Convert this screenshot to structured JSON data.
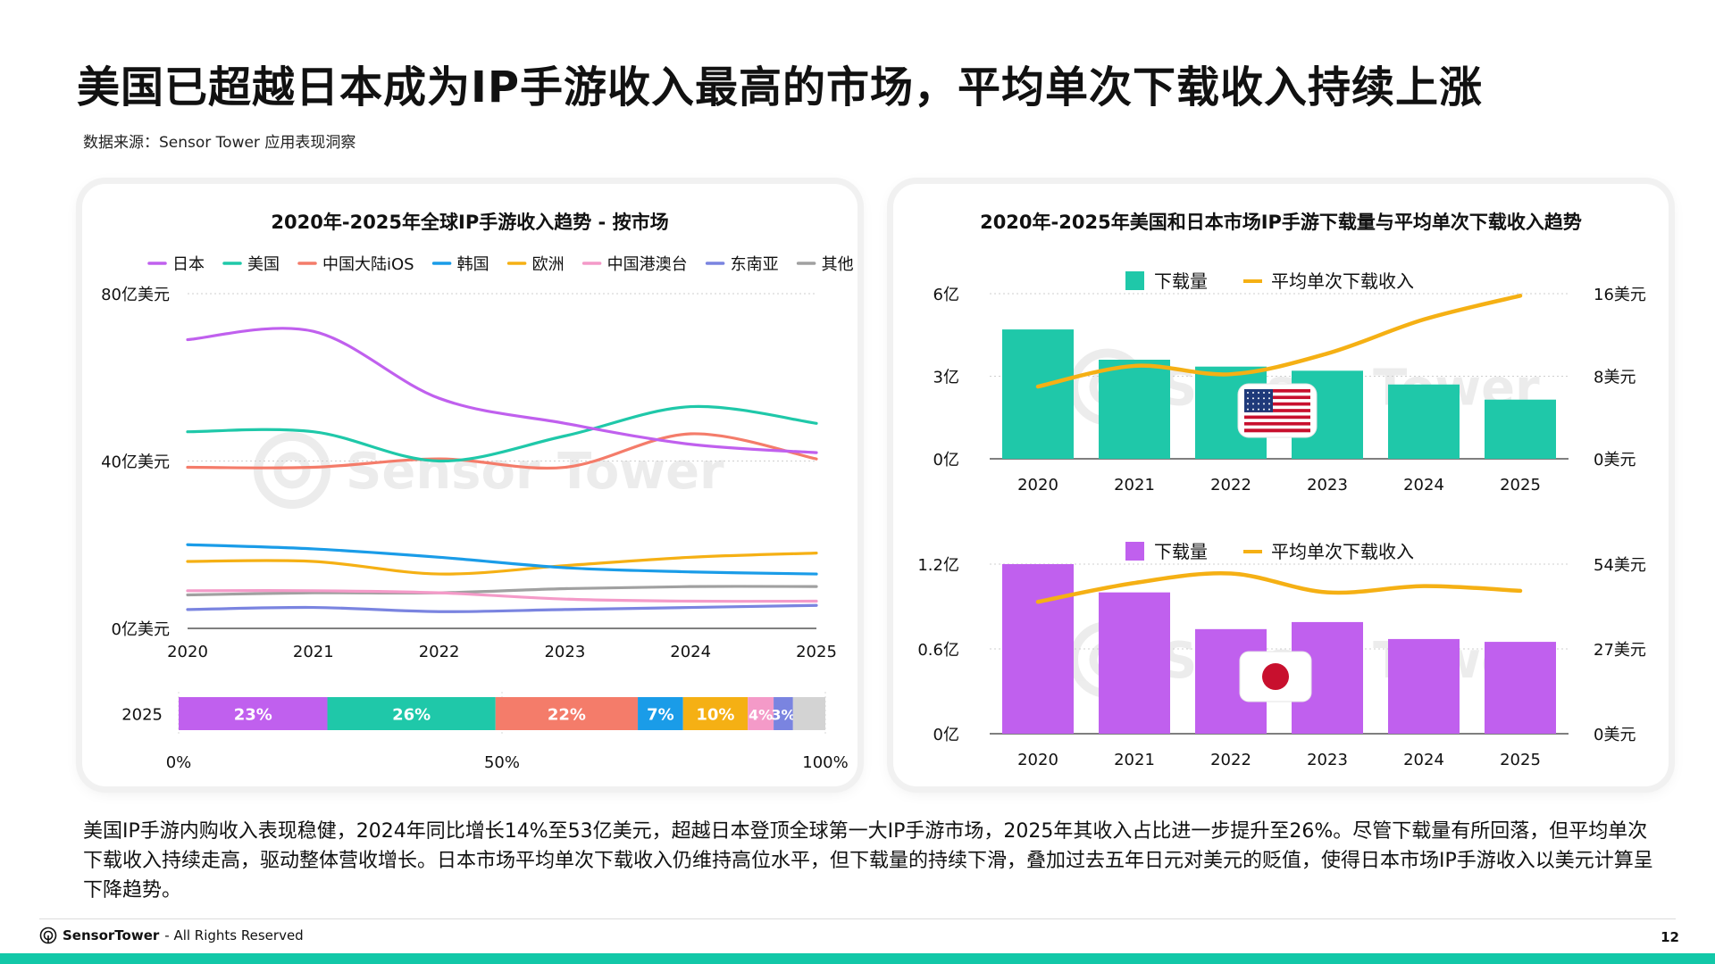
{
  "page": {
    "title": "美国已超越日本成为IP手游收入最高的市场，平均单次下载收入持续上涨",
    "source": "数据来源：Sensor Tower 应用表现洞察",
    "summary": "美国IP手游内购收入表现稳健，2024年同比增长14%至53亿美元，超越日本登顶全球第一大IP手游市场，2025年其收入占比进一步提升至26%。尽管下载量有所回落，但平均单次下载收入持续走高，驱动整体营收增长。日本市场平均单次下载收入仍维持高位水平，但下载量的持续下滑，叠加过去五年日元对美元的贬值，使得日本市场IP手游收入以美元计算呈下降趋势。",
    "footer_brand": "SensorTower",
    "footer_rights": "- All Rights Reserved",
    "page_number": "12",
    "watermark": "Sensor Tower"
  },
  "chart_data": [
    {
      "id": "market-revenue",
      "type": "line",
      "title": "2020年-2025年全球IP手游收入趋势 - 按市场",
      "x": [
        "2020",
        "2021",
        "2022",
        "2023",
        "2024",
        "2025"
      ],
      "ylim": [
        0,
        80
      ],
      "yticks": [
        0,
        40,
        80
      ],
      "ytick_labels": [
        "0亿美元",
        "40亿美元",
        "80亿美元"
      ],
      "grid": true,
      "legend": "top",
      "series": [
        {
          "name": "日本",
          "color": "#c060ee",
          "values": [
            69,
            71,
            55,
            49,
            44,
            42
          ]
        },
        {
          "name": "美国",
          "color": "#1fc8a9",
          "values": [
            47,
            47,
            40,
            46,
            53,
            49
          ]
        },
        {
          "name": "中国大陆iOS",
          "color": "#f47c6a",
          "values": [
            38.5,
            38.5,
            40.5,
            38.5,
            46.5,
            40.5
          ]
        },
        {
          "name": "韩国",
          "color": "#1a9ce8",
          "values": [
            20,
            19,
            17,
            14.5,
            13.5,
            13
          ]
        },
        {
          "name": "欧洲",
          "color": "#f5b014",
          "values": [
            16,
            16,
            13,
            15,
            17,
            18
          ]
        },
        {
          "name": "中国港澳台",
          "color": "#f49ac8",
          "values": [
            9,
            9,
            8.5,
            7,
            6.5,
            6.5
          ]
        },
        {
          "name": "东南亚",
          "color": "#7a84e0",
          "values": [
            4.5,
            5,
            4,
            4.5,
            5,
            5.5
          ]
        },
        {
          "name": "其他",
          "color": "#a0a0a0",
          "values": [
            8,
            8.5,
            8.5,
            9.5,
            10,
            10
          ]
        }
      ]
    },
    {
      "id": "share-2025",
      "type": "bar",
      "orientation": "horizontal-stacked",
      "category": "2025",
      "xlim": [
        0,
        100
      ],
      "xtick_labels": [
        "0%",
        "50%",
        "100%"
      ],
      "segments": [
        {
          "name": "日本",
          "value": 23,
          "label": "23%",
          "color": "#c060ee"
        },
        {
          "name": "美国",
          "value": 26,
          "label": "26%",
          "color": "#1fc8a9"
        },
        {
          "name": "中国大陆iOS",
          "value": 22,
          "label": "22%",
          "color": "#f47c6a"
        },
        {
          "name": "韩国",
          "value": 7,
          "label": "7%",
          "color": "#1a9ce8"
        },
        {
          "name": "欧洲",
          "value": 10,
          "label": "10%",
          "color": "#f5b014"
        },
        {
          "name": "中国港澳台",
          "value": 4,
          "label": "4%",
          "color": "#f49ac8"
        },
        {
          "name": "东南亚",
          "value": 3,
          "label": "3%",
          "color": "#7a84e0"
        },
        {
          "name": "其他",
          "value": 5,
          "label": "",
          "color": "#d3d3d3"
        }
      ]
    },
    {
      "id": "us-downloads",
      "type": "bar",
      "title": "2020年-2025年美国和日本市场IP手游下载量与平均单次下载收入趋势",
      "flag": "us-flag",
      "x": [
        "2020",
        "2021",
        "2022",
        "2023",
        "2024",
        "2025"
      ],
      "bar_series": {
        "name": "下载量",
        "color": "#1fc8a9",
        "values": [
          4.7,
          3.6,
          3.35,
          3.2,
          2.7,
          2.15
        ],
        "ylim": [
          0,
          6
        ],
        "ytick_labels": [
          "0亿",
          "3亿",
          "6亿"
        ]
      },
      "line_series": {
        "name": "平均单次下载收入",
        "color": "#f5b014",
        "values": [
          7.0,
          9.0,
          8.2,
          10.2,
          13.5,
          15.8
        ],
        "ylim": [
          0,
          16
        ],
        "ytick_labels": [
          "0美元",
          "8美元",
          "16美元"
        ]
      },
      "legend": "top"
    },
    {
      "id": "jp-downloads",
      "type": "bar",
      "flag": "japan-flag",
      "x": [
        "2020",
        "2021",
        "2022",
        "2023",
        "2024",
        "2025"
      ],
      "bar_series": {
        "name": "下载量",
        "color": "#c060ee",
        "values": [
          1.2,
          1.0,
          0.74,
          0.79,
          0.67,
          0.65
        ],
        "ylim": [
          0,
          1.2
        ],
        "ytick_labels": [
          "0亿",
          "0.6亿",
          "1.2亿"
        ]
      },
      "line_series": {
        "name": "平均单次下载收入",
        "color": "#f5b014",
        "values": [
          42,
          48,
          51,
          45,
          47,
          45.5
        ],
        "ylim": [
          0,
          54
        ],
        "ytick_labels": [
          "0美元",
          "27美元",
          "54美元"
        ]
      },
      "legend": "top"
    }
  ]
}
